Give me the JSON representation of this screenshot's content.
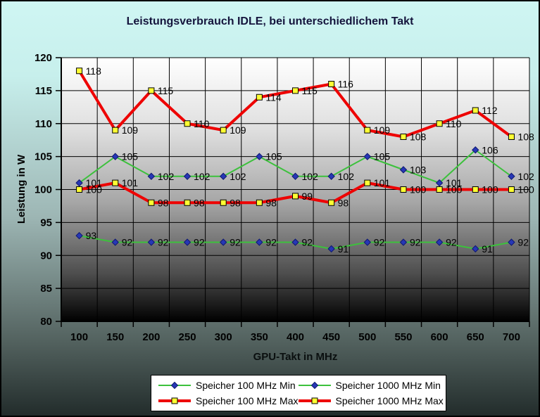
{
  "title": "Leistungsverbrauch IDLE, bei unterschiedlichem Takt",
  "chart_data": {
    "type": "line",
    "title": "Leistungsverbrauch IDLE, bei unterschiedlichem Takt",
    "xlabel": "GPU-Takt in MHz",
    "ylabel": "Leistung in W",
    "categories": [
      100,
      150,
      200,
      250,
      300,
      350,
      400,
      450,
      500,
      550,
      600,
      650,
      700
    ],
    "ylim": [
      80,
      120
    ],
    "ytick_step": 5,
    "grid": true,
    "data_labels": true,
    "legend_position": "bottom-center",
    "series": [
      {
        "name": "Speicher 100 MHz Min",
        "line_color": "#3cc13c",
        "line_width": 2,
        "marker": "diamond",
        "marker_color": "#2737b6",
        "marker_edge": "#101a70",
        "values": [
          93,
          92,
          92,
          92,
          92,
          92,
          92,
          91,
          92,
          92,
          92,
          91,
          92
        ]
      },
      {
        "name": "Speicher 1000 MHz Min",
        "line_color": "#3cc13c",
        "line_width": 2,
        "marker": "diamond",
        "marker_color": "#2737b6",
        "marker_edge": "#101a70",
        "values": [
          101,
          105,
          102,
          102,
          102,
          105,
          102,
          102,
          105,
          103,
          101,
          106,
          102
        ]
      },
      {
        "name": "Speicher 100 MHz Max",
        "line_color": "#ee0000",
        "line_width": 4,
        "marker": "square",
        "marker_color": "#ffff33",
        "marker_edge": "#000000",
        "values": [
          100,
          101,
          98,
          98,
          98,
          98,
          99,
          98,
          101,
          100,
          100,
          100,
          100
        ]
      },
      {
        "name": "Speicher 1000 MHz Max",
        "line_color": "#ee0000",
        "line_width": 4,
        "marker": "square",
        "marker_color": "#ffff33",
        "marker_edge": "#000000",
        "values": [
          118,
          109,
          115,
          110,
          109,
          114,
          115,
          116,
          109,
          108,
          110,
          112,
          108
        ]
      }
    ],
    "plot_background": {
      "top": "#ffffff",
      "bottom": "#000000"
    },
    "outer_background_top": "#cff6f3",
    "outer_background_bottom": "#222c2b",
    "title_color": "#14143c",
    "gridline_color": "#000000",
    "label_color": "#000000"
  }
}
